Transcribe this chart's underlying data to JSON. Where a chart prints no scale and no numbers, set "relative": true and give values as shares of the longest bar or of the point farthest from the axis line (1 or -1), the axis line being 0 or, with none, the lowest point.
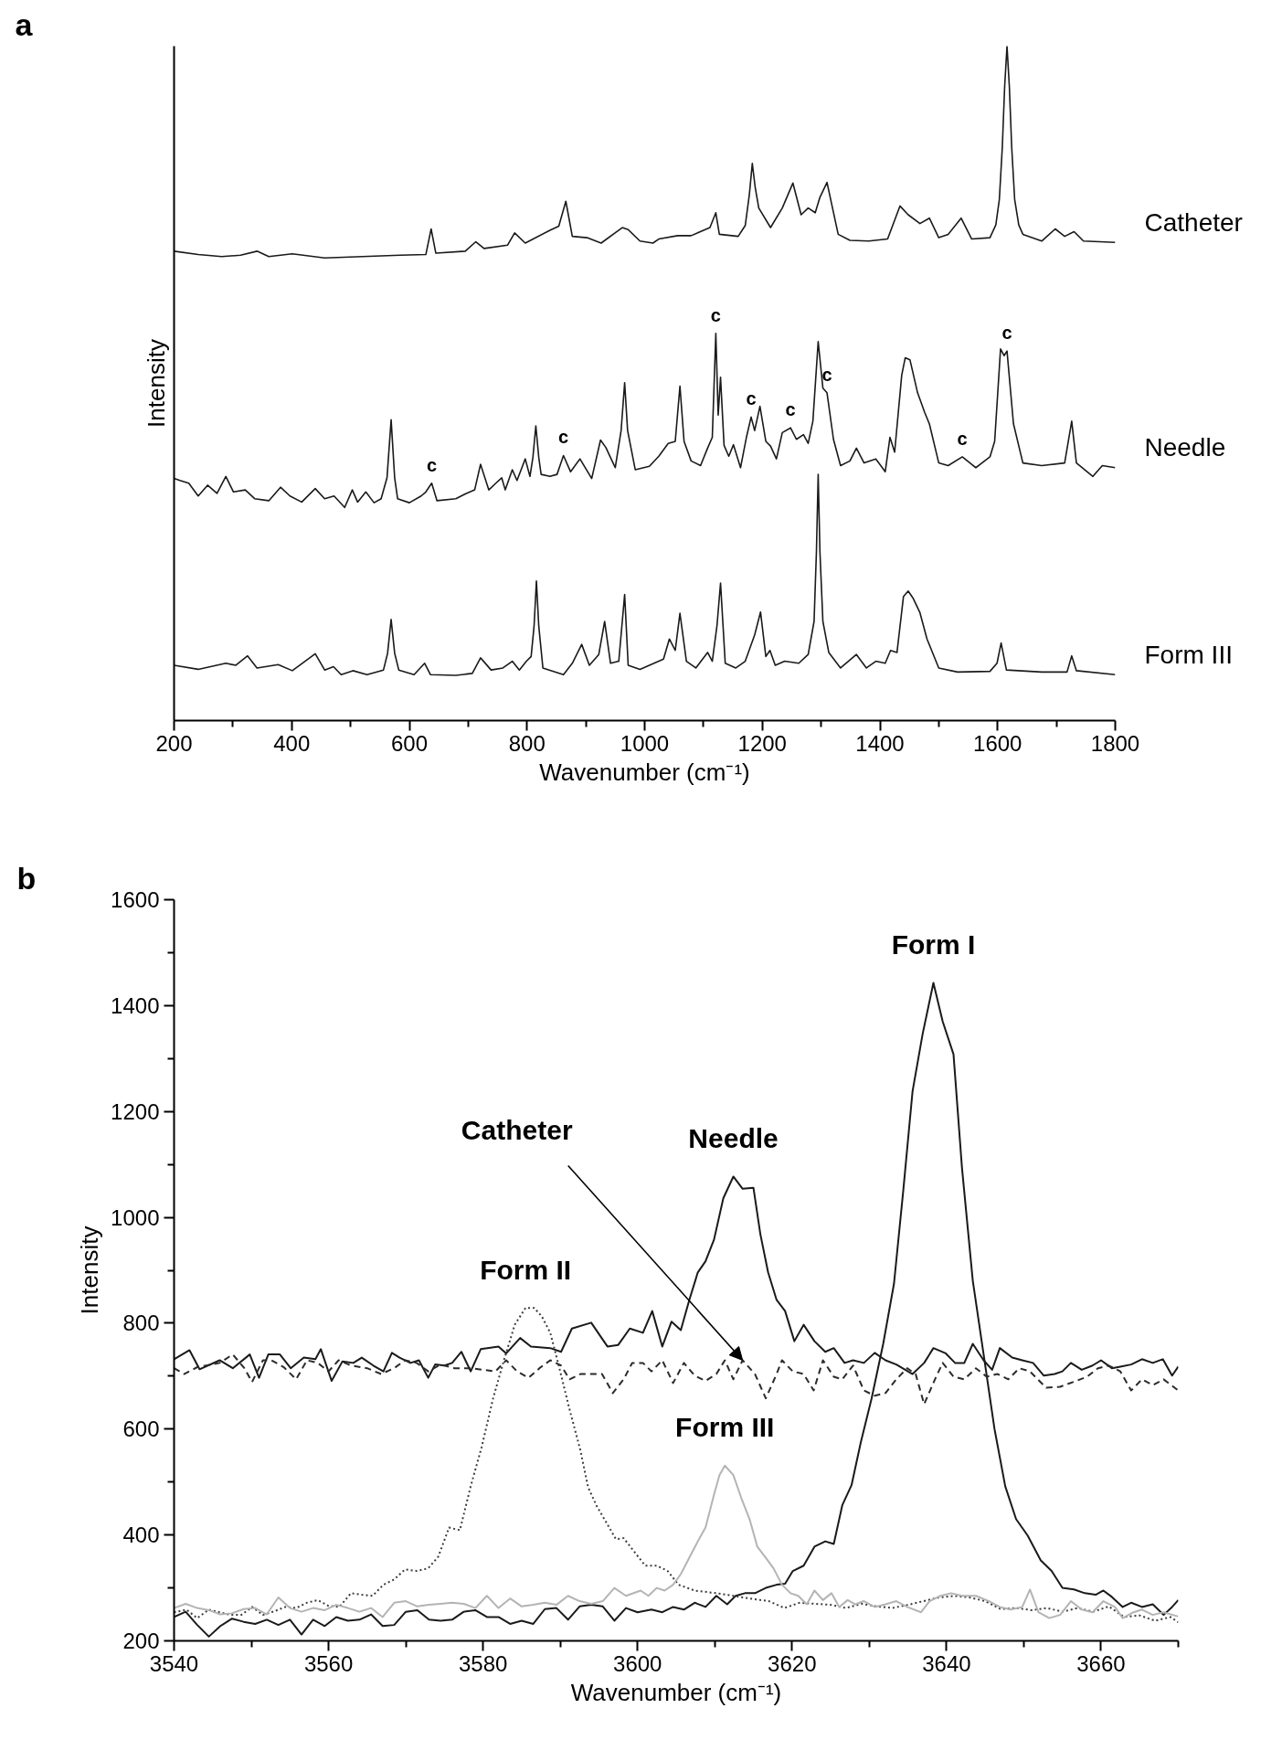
{
  "chart_data": [
    {
      "type": "line",
      "title": "a",
      "xlabel": "Wavenumber (cm⁻¹)",
      "ylabel": "Intensity",
      "relative": true,
      "grid": false,
      "line_style": "solid",
      "xlim": [
        200,
        1800
      ],
      "xticks": [
        200,
        {
          "value": 300,
          "label": null
        },
        400,
        {
          "value": 500,
          "label": null
        },
        600,
        {
          "value": 700,
          "label": null
        },
        800,
        {
          "value": 900,
          "label": null
        },
        1000,
        {
          "value": 1100,
          "label": null
        },
        1200,
        {
          "value": 1300,
          "label": null
        },
        1400,
        {
          "value": 1500,
          "label": null
        },
        1600,
        {
          "value": 1700,
          "label": null
        },
        1800
      ],
      "annotations": [
        {
          "text": "c",
          "x": 638,
          "y": 0.352
        },
        {
          "text": "c",
          "x": 862,
          "y": 0.393
        },
        {
          "text": "c",
          "x": 1121,
          "y": 0.574
        },
        {
          "text": "c",
          "x": 1181,
          "y": 0.45
        },
        {
          "text": "c",
          "x": 1248,
          "y": 0.434
        },
        {
          "text": "c",
          "x": 1310,
          "y": 0.486
        },
        {
          "text": "c",
          "x": 1540,
          "y": 0.391
        },
        {
          "text": "c",
          "x": 1616,
          "y": 0.548
        }
      ],
      "series": [
        {
          "name": "Catheter",
          "color": "#1a1a1a",
          "x": [
            200,
            241,
            281,
            313,
            341,
            361,
            401,
            456,
            520,
            584,
            628,
            637,
            645,
            695,
            713,
            727,
            767,
            779,
            797,
            839,
            854,
            866,
            877,
            902,
            926,
            962,
            972,
            992,
            1014,
            1024,
            1056,
            1079,
            1111,
            1121,
            1127,
            1159,
            1171,
            1178,
            1183,
            1188,
            1194,
            1214,
            1234,
            1252,
            1266,
            1278,
            1290,
            1298,
            1310,
            1329,
            1349,
            1381,
            1413,
            1434,
            1448,
            1468,
            1484,
            1500,
            1516,
            1538,
            1556,
            1587,
            1597,
            1603,
            1608,
            1612,
            1616,
            1620,
            1624,
            1629,
            1636,
            1643,
            1675,
            1698,
            1714,
            1730,
            1746,
            1800
          ],
          "values": [
            0.696,
            0.691,
            0.688,
            0.69,
            0.696,
            0.688,
            0.692,
            0.686,
            0.688,
            0.69,
            0.691,
            0.729,
            0.693,
            0.696,
            0.71,
            0.7,
            0.705,
            0.723,
            0.708,
            0.727,
            0.733,
            0.77,
            0.718,
            0.716,
            0.708,
            0.731,
            0.728,
            0.711,
            0.708,
            0.714,
            0.719,
            0.719,
            0.731,
            0.753,
            0.721,
            0.718,
            0.734,
            0.78,
            0.826,
            0.79,
            0.76,
            0.731,
            0.76,
            0.797,
            0.75,
            0.76,
            0.753,
            0.776,
            0.798,
            0.721,
            0.712,
            0.711,
            0.714,
            0.763,
            0.75,
            0.737,
            0.745,
            0.716,
            0.721,
            0.745,
            0.714,
            0.716,
            0.735,
            0.773,
            0.85,
            0.94,
            1.0,
            0.94,
            0.85,
            0.773,
            0.735,
            0.721,
            0.711,
            0.729,
            0.718,
            0.725,
            0.711,
            0.709
          ]
        },
        {
          "name": "Needle",
          "color": "#1a1a1a",
          "x": [
            200,
            210,
            225,
            241,
            257,
            273,
            288,
            301,
            321,
            337,
            361,
            381,
            397,
            417,
            440,
            456,
            472,
            490,
            503,
            512,
            526,
            540,
            552,
            562,
            569,
            575,
            580,
            600,
            620,
            628,
            638,
            647,
            679,
            695,
            711,
            721,
            735,
            747,
            757,
            763,
            775,
            783,
            797,
            805,
            810,
            815,
            820,
            824,
            839,
            851,
            862,
            874,
            890,
            910,
            925,
            934,
            950,
            960,
            966,
            971,
            984,
            1008,
            1024,
            1040,
            1052,
            1060,
            1067,
            1079,
            1095,
            1107,
            1115,
            1121,
            1125,
            1129,
            1135,
            1143,
            1151,
            1163,
            1173,
            1181,
            1187,
            1196,
            1206,
            1214,
            1224,
            1234,
            1248,
            1258,
            1270,
            1278,
            1286,
            1295,
            1303,
            1310,
            1321,
            1333,
            1349,
            1360,
            1373,
            1393,
            1409,
            1417,
            1425,
            1437,
            1443,
            1451,
            1464,
            1476,
            1484,
            1500,
            1516,
            1540,
            1563,
            1587,
            1595,
            1605,
            1611,
            1616,
            1627,
            1643,
            1675,
            1714,
            1726,
            1734,
            1762,
            1778,
            1800
          ],
          "values": [
            0.359,
            0.356,
            0.352,
            0.333,
            0.349,
            0.337,
            0.362,
            0.339,
            0.342,
            0.329,
            0.326,
            0.346,
            0.333,
            0.324,
            0.344,
            0.329,
            0.333,
            0.316,
            0.342,
            0.324,
            0.339,
            0.323,
            0.329,
            0.36,
            0.446,
            0.36,
            0.329,
            0.323,
            0.333,
            0.339,
            0.352,
            0.326,
            0.329,
            0.336,
            0.342,
            0.38,
            0.342,
            0.352,
            0.36,
            0.342,
            0.372,
            0.356,
            0.388,
            0.362,
            0.39,
            0.437,
            0.39,
            0.365,
            0.362,
            0.365,
            0.393,
            0.369,
            0.388,
            0.359,
            0.416,
            0.405,
            0.375,
            0.43,
            0.501,
            0.43,
            0.372,
            0.377,
            0.392,
            0.411,
            0.414,
            0.496,
            0.414,
            0.385,
            0.378,
            0.404,
            0.42,
            0.574,
            0.453,
            0.509,
            0.408,
            0.392,
            0.409,
            0.375,
            0.42,
            0.45,
            0.43,
            0.466,
            0.414,
            0.407,
            0.388,
            0.427,
            0.434,
            0.417,
            0.424,
            0.411,
            0.444,
            0.562,
            0.493,
            0.486,
            0.417,
            0.378,
            0.385,
            0.404,
            0.382,
            0.388,
            0.369,
            0.42,
            0.398,
            0.512,
            0.538,
            0.535,
            0.486,
            0.457,
            0.44,
            0.382,
            0.378,
            0.391,
            0.375,
            0.391,
            0.414,
            0.551,
            0.541,
            0.548,
            0.44,
            0.382,
            0.378,
            0.382,
            0.444,
            0.382,
            0.362,
            0.378,
            0.375
          ]
        },
        {
          "name": "Form III",
          "color": "#1a1a1a",
          "x": [
            200,
            241,
            288,
            305,
            325,
            341,
            377,
            401,
            440,
            456,
            471,
            484,
            504,
            528,
            556,
            563,
            569,
            575,
            582,
            608,
            626,
            636,
            679,
            707,
            721,
            739,
            759,
            775,
            787,
            799,
            807,
            812,
            816,
            820,
            827,
            862,
            877,
            893,
            906,
            922,
            932,
            942,
            956,
            966,
            972,
            992,
            1016,
            1032,
            1042,
            1052,
            1060,
            1071,
            1087,
            1107,
            1115,
            1123,
            1129,
            1137,
            1155,
            1171,
            1187,
            1197,
            1206,
            1213,
            1222,
            1238,
            1262,
            1278,
            1288,
            1292,
            1295,
            1298,
            1303,
            1313,
            1333,
            1360,
            1377,
            1393,
            1409,
            1418,
            1429,
            1440,
            1448,
            1456,
            1468,
            1480,
            1500,
            1532,
            1587,
            1599,
            1606,
            1615,
            1675,
            1718,
            1726,
            1734,
            1800
          ],
          "values": [
            0.082,
            0.076,
            0.085,
            0.082,
            0.096,
            0.078,
            0.083,
            0.074,
            0.099,
            0.075,
            0.08,
            0.068,
            0.074,
            0.068,
            0.075,
            0.1,
            0.15,
            0.1,
            0.075,
            0.068,
            0.085,
            0.068,
            0.067,
            0.07,
            0.093,
            0.075,
            0.078,
            0.088,
            0.075,
            0.088,
            0.095,
            0.14,
            0.207,
            0.14,
            0.078,
            0.068,
            0.085,
            0.113,
            0.082,
            0.098,
            0.147,
            0.085,
            0.088,
            0.187,
            0.082,
            0.076,
            0.085,
            0.091,
            0.121,
            0.104,
            0.159,
            0.088,
            0.078,
            0.101,
            0.088,
            0.141,
            0.204,
            0.085,
            0.078,
            0.088,
            0.127,
            0.161,
            0.095,
            0.104,
            0.082,
            0.088,
            0.085,
            0.098,
            0.147,
            0.25,
            0.365,
            0.25,
            0.147,
            0.101,
            0.078,
            0.098,
            0.078,
            0.088,
            0.085,
            0.104,
            0.101,
            0.184,
            0.192,
            0.182,
            0.16,
            0.121,
            0.078,
            0.072,
            0.073,
            0.085,
            0.115,
            0.075,
            0.072,
            0.072,
            0.096,
            0.074,
            0.068
          ]
        }
      ]
    },
    {
      "type": "line",
      "title": "b",
      "xlabel": "Wavenumber (cm⁻¹)",
      "ylabel": "Intensity",
      "grid": false,
      "line_style": "solid",
      "xlim": [
        3540,
        3670
      ],
      "ylim": [
        200,
        1600
      ],
      "xticks": [
        3540,
        {
          "value": 3550,
          "label": null
        },
        3560,
        {
          "value": 3570,
          "label": null
        },
        3580,
        {
          "value": 3590,
          "label": null
        },
        3600,
        {
          "value": 3610,
          "label": null
        },
        3620,
        {
          "value": 3630,
          "label": null
        },
        3640,
        {
          "value": 3650,
          "label": null
        },
        3660,
        {
          "value": 3670,
          "label": null
        }
      ],
      "yticks": [
        200,
        {
          "value": 300,
          "label": null
        },
        400,
        {
          "value": 500,
          "label": null
        },
        600,
        {
          "value": 700,
          "label": null
        },
        800,
        {
          "value": 900,
          "label": null
        },
        1000,
        {
          "value": 1100,
          "label": null
        },
        1200,
        {
          "value": 1300,
          "label": null
        },
        1400,
        {
          "value": 1500,
          "label": null
        },
        1600
      ],
      "annotations": [
        {
          "text": "Catheter",
          "x": 3613.6,
          "y": 730
        }
      ],
      "series": [
        {
          "name": "Form I",
          "color": "#1a1a1a",
          "x": [
            3540,
            3541.5,
            3543,
            3544.5,
            3546,
            3547.5,
            3549,
            3550.5,
            3552,
            3553.5,
            3555,
            3556.5,
            3558,
            3559.5,
            3561,
            3562.5,
            3564,
            3565.5,
            3567,
            3568.5,
            3570,
            3571.5,
            3573,
            3574.5,
            3576,
            3577.5,
            3579,
            3580.5,
            3582,
            3583.5,
            3585,
            3586.5,
            3588,
            3589.5,
            3591,
            3592.5,
            3594,
            3595.5,
            3597,
            3598.5,
            3600,
            3601.8,
            3603.2,
            3604.6,
            3606,
            3607.4,
            3608.8,
            3610.2,
            3611.6,
            3612.7,
            3613.9,
            3615.2,
            3616.6,
            3618,
            3619.1,
            3620.1,
            3621.5,
            3622.9,
            3624.3,
            3625.4,
            3626.5,
            3627.7,
            3628.9,
            3630.3,
            3631.8,
            3633.2,
            3634.4,
            3635.6,
            3636.9,
            3638.3,
            3639.5,
            3640.9,
            3642,
            3643.4,
            3644.8,
            3646.2,
            3647.6,
            3649,
            3650.5,
            3652.2,
            3653.6,
            3655,
            3656.5,
            3657.9,
            3659.3,
            3660.3,
            3661.4,
            3662.8,
            3663.9,
            3665.3,
            3666.7,
            3668.1,
            3669.2,
            3670
          ],
          "values": [
            245,
            255,
            230,
            208,
            228,
            242,
            236,
            232,
            240,
            230,
            240,
            212,
            240,
            228,
            245,
            238,
            240,
            250,
            228,
            230,
            255,
            258,
            240,
            238,
            240,
            255,
            258,
            245,
            245,
            232,
            238,
            232,
            260,
            262,
            240,
            265,
            268,
            265,
            238,
            262,
            254,
            259,
            254,
            264,
            259,
            272,
            264,
            285,
            269,
            285,
            290,
            290,
            300,
            306,
            308,
            332,
            342,
            378,
            388,
            383,
            456,
            494,
            575,
            658,
            761,
            875,
            1051,
            1238,
            1346,
            1443,
            1370,
            1308,
            1093,
            880,
            741,
            601,
            492,
            430,
            399,
            352,
            332,
            300,
            297,
            290,
            287,
            295,
            283,
            264,
            272,
            264,
            269,
            249,
            264,
            277
          ]
        },
        {
          "name": "Needle",
          "color": "#1a1a1a",
          "x": [
            3540,
            3542,
            3543.3,
            3545.9,
            3547.6,
            3549.8,
            3551,
            3552.2,
            3553.7,
            3555.1,
            3556.8,
            3558.3,
            3559,
            3560.4,
            3561.8,
            3563.2,
            3564.3,
            3565.8,
            3567.1,
            3568.2,
            3569.2,
            3570.6,
            3571.7,
            3572.9,
            3573.8,
            3575,
            3576,
            3577.2,
            3578.4,
            3579.7,
            3582,
            3583,
            3584.8,
            3586.2,
            3588.7,
            3590.1,
            3591.5,
            3594,
            3596.1,
            3597.5,
            3599,
            3600.7,
            3601.9,
            3603.2,
            3604.4,
            3605.6,
            3606.7,
            3607.8,
            3608.8,
            3609.9,
            3611.1,
            3612.4,
            3613.6,
            3615,
            3615.9,
            3616.9,
            3618,
            3619.1,
            3620.3,
            3621.5,
            3622.9,
            3624.3,
            3625.4,
            3626.8,
            3627.9,
            3629.3,
            3630.7,
            3632.1,
            3633.5,
            3635.6,
            3637.1,
            3638.3,
            3639.9,
            3641.1,
            3642.3,
            3643.4,
            3644.8,
            3645.9,
            3646.9,
            3648.5,
            3649.8,
            3651.2,
            3652.6,
            3654,
            3655,
            3656.1,
            3657.5,
            3658.9,
            3660,
            3661.4,
            3662.5,
            3663.9,
            3665.3,
            3666.7,
            3668,
            3669.2,
            3670
          ],
          "values": [
            732,
            749,
            713,
            730,
            715,
            741,
            697,
            741,
            741,
            715,
            735,
            732,
            751,
            691,
            728,
            725,
            735,
            720,
            709,
            744,
            735,
            725,
            730,
            697,
            722,
            720,
            725,
            746,
            709,
            751,
            756,
            743,
            772,
            756,
            753,
            746,
            790,
            801,
            756,
            759,
            790,
            782,
            823,
            756,
            803,
            787,
            844,
            896,
            917,
            958,
            1036,
            1077,
            1054,
            1056,
            968,
            896,
            844,
            823,
            766,
            797,
            766,
            746,
            753,
            725,
            730,
            725,
            744,
            730,
            722,
            704,
            725,
            753,
            743,
            725,
            725,
            761,
            730,
            712,
            753,
            735,
            730,
            725,
            701,
            704,
            709,
            725,
            712,
            720,
            730,
            715,
            718,
            722,
            732,
            725,
            732,
            701,
            718
          ]
        },
        {
          "color": "#2b2b2b",
          "line_style": "dashed",
          "x": [
            3540,
            3541.3,
            3543,
            3545.9,
            3547.6,
            3549.1,
            3550.1,
            3551.5,
            3552.6,
            3554.2,
            3555.8,
            3557.2,
            3558.6,
            3560,
            3561.3,
            3562.9,
            3565,
            3566.8,
            3568.5,
            3569.9,
            3571.4,
            3572.9,
            3574.5,
            3576.3,
            3578.4,
            3580,
            3581.6,
            3583,
            3584.4,
            3585.9,
            3587.3,
            3588.7,
            3590.1,
            3591.2,
            3592.6,
            3595.4,
            3596.8,
            3598.2,
            3599.3,
            3600.7,
            3601.8,
            3603.2,
            3604.6,
            3606,
            3607.4,
            3608.8,
            3610.2,
            3611.3,
            3612.4,
            3613.6,
            3615.2,
            3616.6,
            3618,
            3618.7,
            3620.1,
            3621.5,
            3622.8,
            3624,
            3625.4,
            3626.5,
            3627.9,
            3629.3,
            3630.7,
            3632.1,
            3633.5,
            3634.9,
            3636,
            3637.1,
            3638.5,
            3639.5,
            3640.9,
            3642.3,
            3643.8,
            3645.2,
            3646.6,
            3648,
            3649.4,
            3650.8,
            3652.9,
            3654.7,
            3656.8,
            3658.2,
            3659.6,
            3661,
            3662.5,
            3663.9,
            3665.3,
            3666.7,
            3668.1,
            3670
          ],
          "values": [
            715,
            704,
            717,
            725,
            741,
            715,
            689,
            730,
            730,
            717,
            694,
            730,
            725,
            709,
            730,
            720,
            715,
            704,
            715,
            730,
            725,
            709,
            722,
            715,
            715,
            712,
            709,
            730,
            709,
            697,
            715,
            730,
            720,
            694,
            704,
            704,
            668,
            694,
            725,
            725,
            709,
            730,
            687,
            725,
            701,
            691,
            704,
            730,
            694,
            730,
            704,
            658,
            704,
            730,
            709,
            704,
            673,
            730,
            699,
            694,
            720,
            673,
            663,
            668,
            694,
            715,
            704,
            647,
            694,
            725,
            699,
            694,
            715,
            699,
            704,
            694,
            715,
            709,
            678,
            680,
            691,
            699,
            715,
            720,
            709,
            673,
            694,
            683,
            694,
            673
          ]
        },
        {
          "name": "Form II",
          "color": "#3c3c3c",
          "line_style": "dotted",
          "x": [
            3540,
            3541.6,
            3543,
            3544.5,
            3545.9,
            3547.3,
            3548.7,
            3550.1,
            3551.5,
            3553,
            3554.4,
            3555.8,
            3557.2,
            3558.6,
            3560,
            3561.4,
            3562.9,
            3564.3,
            3565.7,
            3567.1,
            3568.5,
            3569.9,
            3571.4,
            3572.9,
            3574.2,
            3575.6,
            3577,
            3578.4,
            3579.8,
            3581.3,
            3582.7,
            3584.1,
            3585.5,
            3586.6,
            3587.6,
            3588.7,
            3589.8,
            3591.2,
            3592.6,
            3593.6,
            3594.7,
            3596.1,
            3597.2,
            3598.2,
            3599.6,
            3601,
            3602.5,
            3603.9,
            3605.3,
            3607.4,
            3610.2,
            3612.4,
            3614.5,
            3617,
            3619,
            3621,
            3623,
            3625,
            3627,
            3629,
            3631,
            3633,
            3635,
            3637,
            3639,
            3641,
            3643,
            3645,
            3647,
            3649,
            3651,
            3653,
            3655,
            3657,
            3659,
            3661,
            3663,
            3665,
            3667,
            3669,
            3670
          ],
          "values": [
            254,
            259,
            243,
            259,
            254,
            249,
            249,
            264,
            249,
            256,
            264,
            262,
            272,
            277,
            266,
            264,
            290,
            287,
            285,
            306,
            316,
            335,
            332,
            337,
            359,
            414,
            409,
            492,
            565,
            658,
            730,
            797,
            829,
            829,
            813,
            782,
            720,
            637,
            560,
            490,
            455,
            420,
            392,
            394,
            368,
            342,
            342,
            332,
            306,
            295,
            290,
            285,
            280,
            275,
            262,
            272,
            270,
            268,
            262,
            270,
            265,
            262,
            268,
            275,
            282,
            285,
            282,
            275,
            260,
            262,
            258,
            262,
            255,
            262,
            255,
            265,
            245,
            248,
            238,
            245,
            235
          ]
        },
        {
          "name": "Form III",
          "color": "#b4b4b4",
          "x": [
            3540,
            3541.5,
            3543,
            3544.5,
            3546,
            3547.5,
            3549,
            3550.5,
            3552,
            3553.5,
            3555,
            3556.5,
            3558,
            3559.5,
            3561,
            3562.5,
            3564,
            3565.5,
            3567,
            3568.5,
            3570,
            3571.5,
            3573,
            3574.5,
            3576,
            3577.5,
            3579,
            3580.5,
            3582,
            3583.5,
            3585,
            3586.5,
            3588,
            3589.5,
            3591,
            3592.5,
            3594,
            3595.5,
            3597,
            3598.5,
            3600.4,
            3601.4,
            3602.5,
            3603.5,
            3604.6,
            3605.6,
            3606.7,
            3607.8,
            3608.8,
            3609.9,
            3610.6,
            3611.3,
            3612.4,
            3613.4,
            3614.5,
            3615.5,
            3616.6,
            3617.6,
            3618.7,
            3619.8,
            3620.8,
            3621.9,
            3622.9,
            3624,
            3625.1,
            3626.1,
            3627.2,
            3628.2,
            3629.3,
            3630.7,
            3632.1,
            3633.5,
            3634.9,
            3636.7,
            3637.8,
            3639.2,
            3640.6,
            3642,
            3643.8,
            3645.5,
            3646.9,
            3648.3,
            3649.8,
            3650.8,
            3651.9,
            3653.3,
            3654.7,
            3656.1,
            3657.5,
            3658.9,
            3660.3,
            3661.8,
            3662.8,
            3664.2,
            3665.3,
            3666.7,
            3668.1,
            3670
          ],
          "values": [
            262,
            270,
            262,
            258,
            250,
            252,
            260,
            262,
            250,
            282,
            262,
            255,
            262,
            258,
            268,
            262,
            255,
            262,
            245,
            272,
            275,
            265,
            268,
            270,
            272,
            270,
            262,
            285,
            262,
            280,
            265,
            268,
            272,
            268,
            285,
            275,
            270,
            275,
            300,
            285,
            295,
            285,
            300,
            295,
            306,
            326,
            357,
            388,
            414,
            476,
            513,
            531,
            513,
            471,
            430,
            378,
            357,
            337,
            306,
            290,
            285,
            269,
            295,
            277,
            290,
            264,
            277,
            269,
            275,
            264,
            269,
            275,
            264,
            254,
            275,
            285,
            290,
            285,
            285,
            275,
            264,
            259,
            264,
            297,
            254,
            243,
            249,
            275,
            259,
            254,
            275,
            264,
            243,
            254,
            259,
            249,
            254,
            246
          ]
        }
      ]
    }
  ]
}
